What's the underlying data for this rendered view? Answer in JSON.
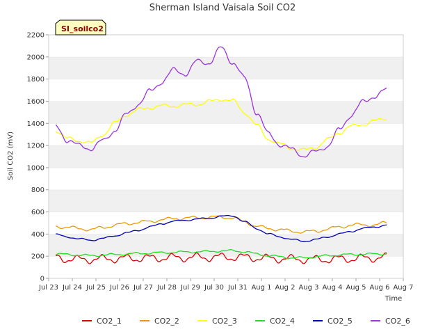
{
  "chart_data": {
    "type": "line",
    "title": "Sherman Island Vaisala Soil CO2",
    "tag": "SI_soilco2",
    "xlabel": "Time",
    "ylabel": "Soil CO2 (mV)",
    "ylim": [
      0,
      2200
    ],
    "yticks": [
      0,
      200,
      400,
      600,
      800,
      1000,
      1200,
      1400,
      1600,
      1800,
      2000,
      2200
    ],
    "xlim": [
      0,
      15
    ],
    "xtick_labels": [
      "Jul 23",
      "Jul 24",
      "Jul 25",
      "Jul 26",
      "Jul 27",
      "Jul 28",
      "Jul 29",
      "Jul 30",
      "Jul 31",
      "Aug 1",
      "Aug 2",
      "Aug 3",
      "Aug 4",
      "Aug 5",
      "Aug 6",
      "Aug 7"
    ],
    "grid": "horizontal bands",
    "legend_position": "bottom",
    "x": [
      0.3,
      0.8,
      1.3,
      1.8,
      2.3,
      2.8,
      3.3,
      3.8,
      4.3,
      4.8,
      5.3,
      5.8,
      6.3,
      6.8,
      7.3,
      7.8,
      8.3,
      8.8,
      9.3,
      9.8,
      10.3,
      10.8,
      11.3,
      11.8,
      12.3,
      12.8,
      13.3,
      13.8,
      14.3
    ],
    "series": [
      {
        "name": "CO2_1",
        "color": "#dd0000",
        "daily_amplitude": 30,
        "values": [
          185,
          175,
          170,
          172,
          175,
          178,
          180,
          182,
          182,
          185,
          187,
          188,
          190,
          190,
          192,
          192,
          190,
          185,
          180,
          178,
          175,
          172,
          170,
          172,
          175,
          178,
          182,
          185,
          190
        ]
      },
      {
        "name": "CO2_2",
        "color": "#ee9900",
        "daily_amplitude": 12,
        "values": [
          470,
          460,
          450,
          440,
          460,
          480,
          495,
          505,
          515,
          530,
          540,
          545,
          548,
          550,
          555,
          545,
          510,
          470,
          450,
          440,
          425,
          420,
          425,
          445,
          465,
          480,
          485,
          480,
          505
        ]
      },
      {
        "name": "CO2_3",
        "color": "#ffff00",
        "daily_amplitude": 15,
        "values": [
          1340,
          1260,
          1245,
          1220,
          1300,
          1400,
          1480,
          1520,
          1545,
          1555,
          1560,
          1565,
          1575,
          1595,
          1620,
          1600,
          1500,
          1380,
          1260,
          1210,
          1175,
          1155,
          1185,
          1250,
          1320,
          1370,
          1395,
          1420,
          1450
        ]
      },
      {
        "name": "CO2_4",
        "color": "#22dd22",
        "daily_amplitude": 8,
        "values": [
          220,
          215,
          210,
          205,
          210,
          215,
          220,
          225,
          228,
          232,
          235,
          238,
          240,
          243,
          248,
          250,
          240,
          220,
          205,
          195,
          185,
          185,
          195,
          205,
          212,
          215,
          218,
          220,
          222
        ]
      },
      {
        "name": "CO2_5",
        "color": "#0000bb",
        "daily_amplitude": 6,
        "values": [
          395,
          375,
          355,
          345,
          360,
          385,
          410,
          435,
          465,
          495,
          515,
          525,
          535,
          545,
          560,
          565,
          510,
          450,
          400,
          375,
          350,
          335,
          350,
          375,
          400,
          425,
          450,
          465,
          480
        ]
      },
      {
        "name": "CO2_6",
        "color": "#9933dd",
        "daily_amplitude": 20,
        "values": [
          1370,
          1250,
          1195,
          1175,
          1240,
          1340,
          1480,
          1580,
          1690,
          1780,
          1880,
          1850,
          1960,
          1950,
          2080,
          1950,
          1800,
          1500,
          1300,
          1210,
          1160,
          1110,
          1140,
          1200,
          1340,
          1480,
          1590,
          1650,
          1700
        ]
      }
    ]
  }
}
